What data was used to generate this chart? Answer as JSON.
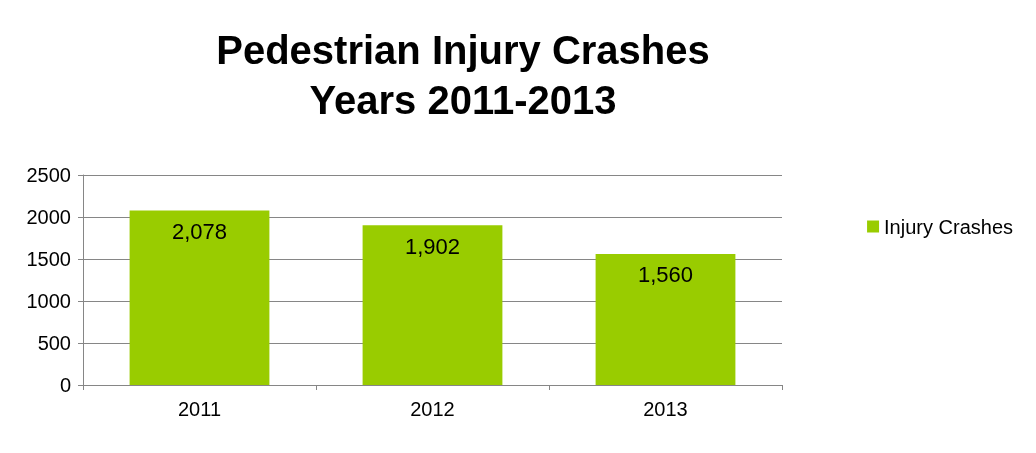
{
  "chart_data": {
    "type": "bar",
    "title": "Pedestrian Injury Crashes\nYears 2011-2013",
    "categories": [
      "2011",
      "2012",
      "2013"
    ],
    "series": [
      {
        "name": "Injury Crashes",
        "color": "#99cc00",
        "values": [
          2078,
          1902,
          1560
        ],
        "value_labels": [
          "2,078",
          "1,902",
          "1,560"
        ]
      }
    ],
    "ylim": [
      0,
      2500
    ],
    "yticks": [
      0,
      500,
      1000,
      1500,
      2000,
      2500
    ],
    "grid": "y",
    "legend": "right"
  }
}
